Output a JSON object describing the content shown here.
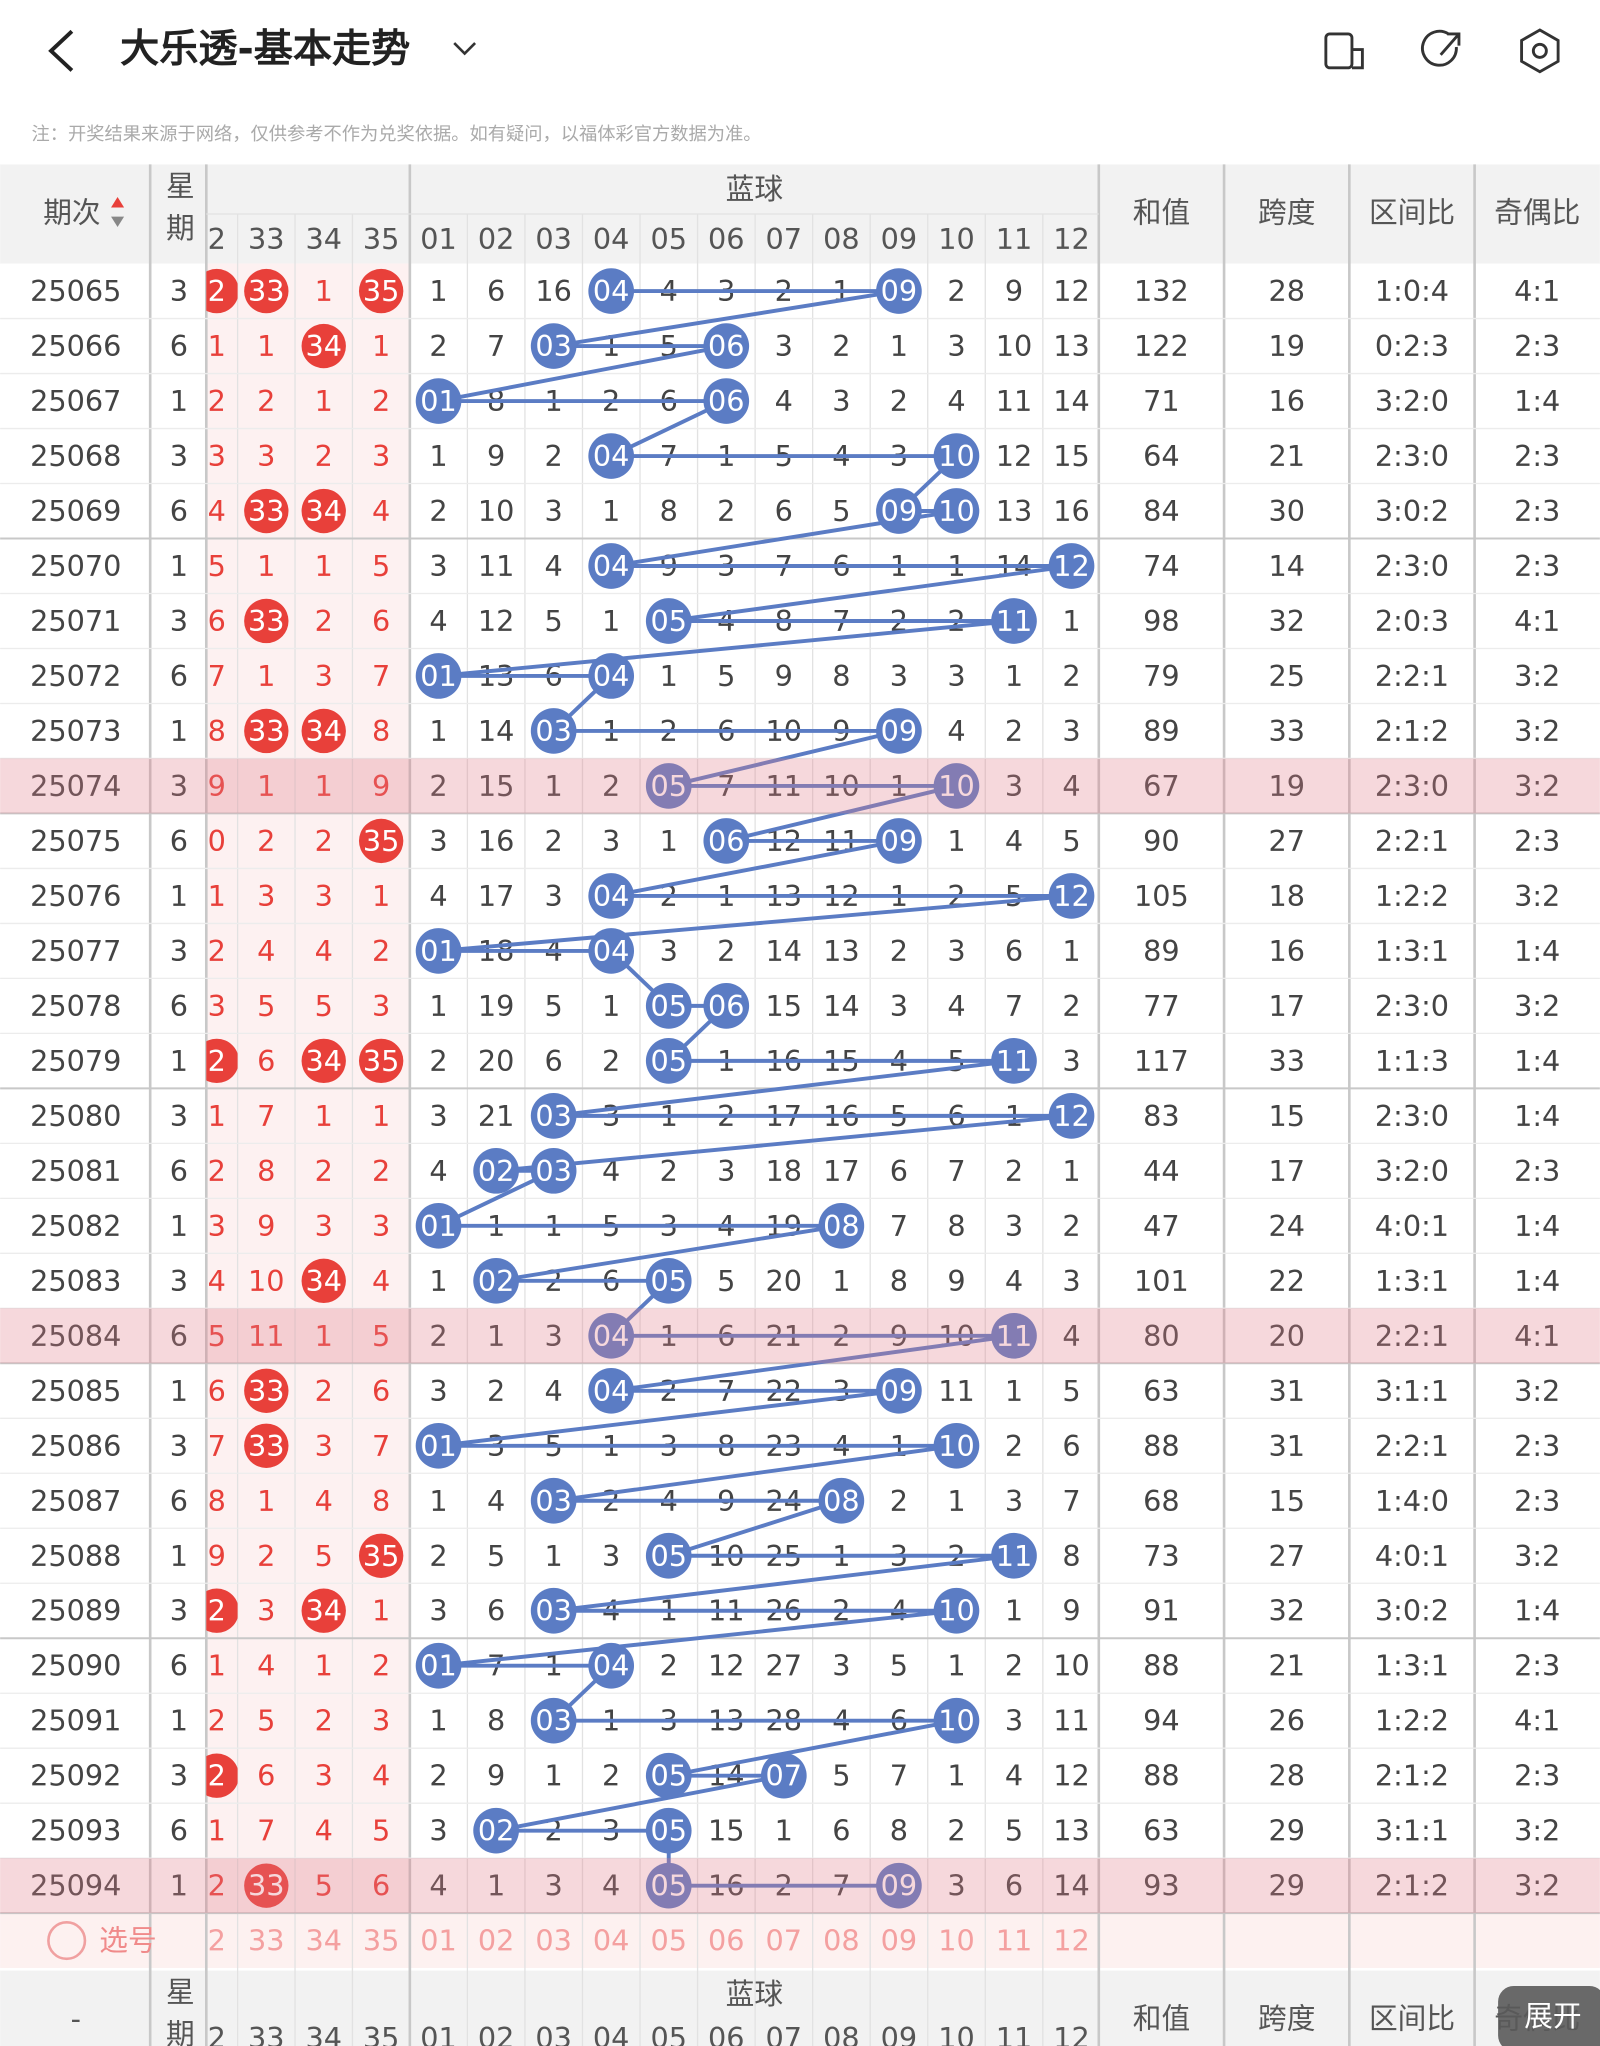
{
  "header": {
    "title": "大乐透-基本走势",
    "note": "注：开奖结果来源于网络，仅供参考不作为兑奖依据。如有疑问，以福体彩官方数据为准。"
  },
  "table": {
    "columns": {
      "period": "期次",
      "week": "星期",
      "blue_group": "蓝球",
      "red": [
        "2",
        "33",
        "34",
        "35"
      ],
      "blue": [
        "01",
        "02",
        "03",
        "04",
        "05",
        "06",
        "07",
        "08",
        "09",
        "10",
        "11",
        "12"
      ],
      "sum": "和值",
      "span": "跨度",
      "zone": "区间比",
      "odd_even": "奇偶比"
    },
    "rows": [
      {
        "period": "25065",
        "week": 3,
        "red": [
          "2",
          "33",
          1,
          "35"
        ],
        "blue": [
          1,
          6,
          16,
          "04",
          4,
          3,
          2,
          1,
          "09",
          2,
          9,
          12
        ],
        "sum": 132,
        "span": 28,
        "zone": "1:0:4",
        "odd_even": "4:1"
      },
      {
        "period": "25066",
        "week": 6,
        "red": [
          1,
          1,
          "34",
          1
        ],
        "blue": [
          2,
          7,
          "03",
          1,
          5,
          "06",
          3,
          2,
          1,
          3,
          10,
          13
        ],
        "sum": 122,
        "span": 19,
        "zone": "0:2:3",
        "odd_even": "2:3"
      },
      {
        "period": "25067",
        "week": 1,
        "red": [
          2,
          2,
          1,
          2
        ],
        "blue": [
          "01",
          8,
          1,
          2,
          6,
          "06",
          4,
          3,
          2,
          4,
          11,
          14
        ],
        "sum": 71,
        "span": 16,
        "zone": "3:2:0",
        "odd_even": "1:4"
      },
      {
        "period": "25068",
        "week": 3,
        "red": [
          3,
          3,
          2,
          3
        ],
        "blue": [
          1,
          9,
          2,
          "04",
          7,
          1,
          5,
          4,
          3,
          "10",
          12,
          15
        ],
        "sum": 64,
        "span": 21,
        "zone": "2:3:0",
        "odd_even": "2:3"
      },
      {
        "period": "25069",
        "week": 6,
        "red": [
          4,
          "33",
          "34",
          4
        ],
        "blue": [
          2,
          10,
          3,
          1,
          8,
          2,
          6,
          5,
          "09",
          "10",
          13,
          16
        ],
        "sum": 84,
        "span": 30,
        "zone": "3:0:2",
        "odd_even": "2:3"
      },
      {
        "period": "25070",
        "week": 1,
        "red": [
          5,
          1,
          1,
          5
        ],
        "blue": [
          3,
          11,
          4,
          "04",
          9,
          3,
          7,
          6,
          1,
          1,
          14,
          "12"
        ],
        "sum": 74,
        "span": 14,
        "zone": "2:3:0",
        "odd_even": "2:3"
      },
      {
        "period": "25071",
        "week": 3,
        "red": [
          6,
          "33",
          2,
          6
        ],
        "blue": [
          4,
          12,
          5,
          1,
          "05",
          4,
          8,
          7,
          2,
          2,
          "11",
          1
        ],
        "sum": 98,
        "span": 32,
        "zone": "2:0:3",
        "odd_even": "4:1"
      },
      {
        "period": "25072",
        "week": 6,
        "red": [
          7,
          1,
          3,
          7
        ],
        "blue": [
          "01",
          13,
          6,
          "04",
          1,
          5,
          9,
          8,
          3,
          3,
          1,
          2
        ],
        "sum": 79,
        "span": 25,
        "zone": "2:2:1",
        "odd_even": "3:2"
      },
      {
        "period": "25073",
        "week": 1,
        "red": [
          8,
          "33",
          "34",
          8
        ],
        "blue": [
          1,
          14,
          "03",
          1,
          2,
          6,
          10,
          9,
          "09",
          4,
          2,
          3
        ],
        "sum": 89,
        "span": 33,
        "zone": "2:1:2",
        "odd_even": "3:2"
      },
      {
        "period": "25074",
        "week": 3,
        "red": [
          9,
          1,
          1,
          9
        ],
        "blue": [
          2,
          15,
          1,
          2,
          "05",
          7,
          11,
          10,
          1,
          "10",
          3,
          4
        ],
        "sum": 67,
        "span": 19,
        "zone": "2:3:0",
        "odd_even": "3:2",
        "highlight": true
      },
      {
        "period": "25075",
        "week": 6,
        "red": [
          0,
          2,
          2,
          "35"
        ],
        "blue": [
          3,
          16,
          2,
          3,
          1,
          "06",
          12,
          11,
          "09",
          1,
          4,
          5
        ],
        "sum": 90,
        "span": 27,
        "zone": "2:2:1",
        "odd_even": "2:3"
      },
      {
        "period": "25076",
        "week": 1,
        "red": [
          1,
          3,
          3,
          1
        ],
        "blue": [
          4,
          17,
          3,
          "04",
          2,
          1,
          13,
          12,
          1,
          2,
          5,
          "12"
        ],
        "sum": 105,
        "span": 18,
        "zone": "1:2:2",
        "odd_even": "3:2"
      },
      {
        "period": "25077",
        "week": 3,
        "red": [
          2,
          4,
          4,
          2
        ],
        "blue": [
          "01",
          18,
          4,
          "04",
          3,
          2,
          14,
          13,
          2,
          3,
          6,
          1
        ],
        "sum": 89,
        "span": 16,
        "zone": "1:3:1",
        "odd_even": "1:4"
      },
      {
        "period": "25078",
        "week": 6,
        "red": [
          3,
          5,
          5,
          3
        ],
        "blue": [
          1,
          19,
          5,
          1,
          "05",
          "06",
          15,
          14,
          3,
          4,
          7,
          2
        ],
        "sum": 77,
        "span": 17,
        "zone": "2:3:0",
        "odd_even": "3:2"
      },
      {
        "period": "25079",
        "week": 1,
        "red": [
          "2",
          6,
          "34",
          "35"
        ],
        "blue": [
          2,
          20,
          6,
          2,
          "05",
          1,
          16,
          15,
          4,
          5,
          "11",
          3
        ],
        "sum": 117,
        "span": 33,
        "zone": "1:1:3",
        "odd_even": "1:4"
      },
      {
        "period": "25080",
        "week": 3,
        "red": [
          1,
          7,
          1,
          1
        ],
        "blue": [
          3,
          21,
          "03",
          3,
          1,
          2,
          17,
          16,
          5,
          6,
          1,
          "12"
        ],
        "sum": 83,
        "span": 15,
        "zone": "2:3:0",
        "odd_even": "1:4"
      },
      {
        "period": "25081",
        "week": 6,
        "red": [
          2,
          8,
          2,
          2
        ],
        "blue": [
          4,
          "02",
          "03",
          4,
          2,
          3,
          18,
          17,
          6,
          7,
          2,
          1
        ],
        "sum": 44,
        "span": 17,
        "zone": "3:2:0",
        "odd_even": "2:3"
      },
      {
        "period": "25082",
        "week": 1,
        "red": [
          3,
          9,
          3,
          3
        ],
        "blue": [
          "01",
          1,
          1,
          5,
          3,
          4,
          19,
          "08",
          7,
          8,
          3,
          2
        ],
        "sum": 47,
        "span": 24,
        "zone": "4:0:1",
        "odd_even": "1:4"
      },
      {
        "period": "25083",
        "week": 3,
        "red": [
          4,
          10,
          "34",
          4
        ],
        "blue": [
          1,
          "02",
          2,
          6,
          "05",
          5,
          20,
          1,
          8,
          9,
          4,
          3
        ],
        "sum": 101,
        "span": 22,
        "zone": "1:3:1",
        "odd_even": "1:4"
      },
      {
        "period": "25084",
        "week": 6,
        "red": [
          5,
          11,
          1,
          5
        ],
        "blue": [
          2,
          1,
          3,
          "04",
          1,
          6,
          21,
          2,
          9,
          10,
          "11",
          4
        ],
        "sum": 80,
        "span": 20,
        "zone": "2:2:1",
        "odd_even": "4:1",
        "highlight": true
      },
      {
        "period": "25085",
        "week": 1,
        "red": [
          6,
          "33",
          2,
          6
        ],
        "blue": [
          3,
          2,
          4,
          "04",
          2,
          7,
          22,
          3,
          "09",
          11,
          1,
          5
        ],
        "sum": 63,
        "span": 31,
        "zone": "3:1:1",
        "odd_even": "3:2"
      },
      {
        "period": "25086",
        "week": 3,
        "red": [
          7,
          "33",
          3,
          7
        ],
        "blue": [
          "01",
          3,
          5,
          1,
          3,
          8,
          23,
          4,
          1,
          "10",
          2,
          6
        ],
        "sum": 88,
        "span": 31,
        "zone": "2:2:1",
        "odd_even": "2:3"
      },
      {
        "period": "25087",
        "week": 6,
        "red": [
          8,
          1,
          4,
          8
        ],
        "blue": [
          1,
          4,
          "03",
          2,
          4,
          9,
          24,
          "08",
          2,
          1,
          3,
          7
        ],
        "sum": 68,
        "span": 15,
        "zone": "1:4:0",
        "odd_even": "2:3"
      },
      {
        "period": "25088",
        "week": 1,
        "red": [
          9,
          2,
          5,
          "35"
        ],
        "blue": [
          2,
          5,
          1,
          3,
          "05",
          10,
          25,
          1,
          3,
          2,
          "11",
          8
        ],
        "sum": 73,
        "span": 27,
        "zone": "4:0:1",
        "odd_even": "3:2"
      },
      {
        "period": "25089",
        "week": 3,
        "red": [
          "2",
          3,
          "34",
          1
        ],
        "blue": [
          3,
          6,
          "03",
          4,
          1,
          11,
          26,
          2,
          4,
          "10",
          1,
          9
        ],
        "sum": 91,
        "span": 32,
        "zone": "3:0:2",
        "odd_even": "1:4"
      },
      {
        "period": "25090",
        "week": 6,
        "red": [
          1,
          4,
          1,
          2
        ],
        "blue": [
          "01",
          7,
          1,
          "04",
          2,
          12,
          27,
          3,
          5,
          1,
          2,
          10
        ],
        "sum": 88,
        "span": 21,
        "zone": "1:3:1",
        "odd_even": "2:3"
      },
      {
        "period": "25091",
        "week": 1,
        "red": [
          2,
          5,
          2,
          3
        ],
        "blue": [
          1,
          8,
          "03",
          1,
          3,
          13,
          28,
          4,
          6,
          "10",
          3,
          11
        ],
        "sum": 94,
        "span": 26,
        "zone": "1:2:2",
        "odd_even": "4:1"
      },
      {
        "period": "25092",
        "week": 3,
        "red": [
          "2",
          6,
          3,
          4
        ],
        "blue": [
          2,
          9,
          1,
          2,
          "05",
          14,
          "07",
          5,
          7,
          1,
          4,
          12
        ],
        "sum": 88,
        "span": 28,
        "zone": "2:1:2",
        "odd_even": "2:3"
      },
      {
        "period": "25093",
        "week": 6,
        "red": [
          1,
          7,
          4,
          5
        ],
        "blue": [
          3,
          "02",
          2,
          3,
          "05",
          15,
          1,
          6,
          8,
          2,
          5,
          13
        ],
        "sum": 63,
        "span": 29,
        "zone": "3:1:1",
        "odd_even": "3:2"
      },
      {
        "period": "25094",
        "week": 1,
        "red": [
          2,
          "33",
          5,
          6
        ],
        "blue": [
          4,
          1,
          3,
          4,
          "05",
          16,
          2,
          7,
          "09",
          3,
          6,
          14
        ],
        "sum": 93,
        "span": 29,
        "zone": "2:1:2",
        "odd_even": "3:2",
        "highlight": true
      }
    ],
    "select_label": "选号",
    "footer_period": "-",
    "expand": "展开"
  }
}
